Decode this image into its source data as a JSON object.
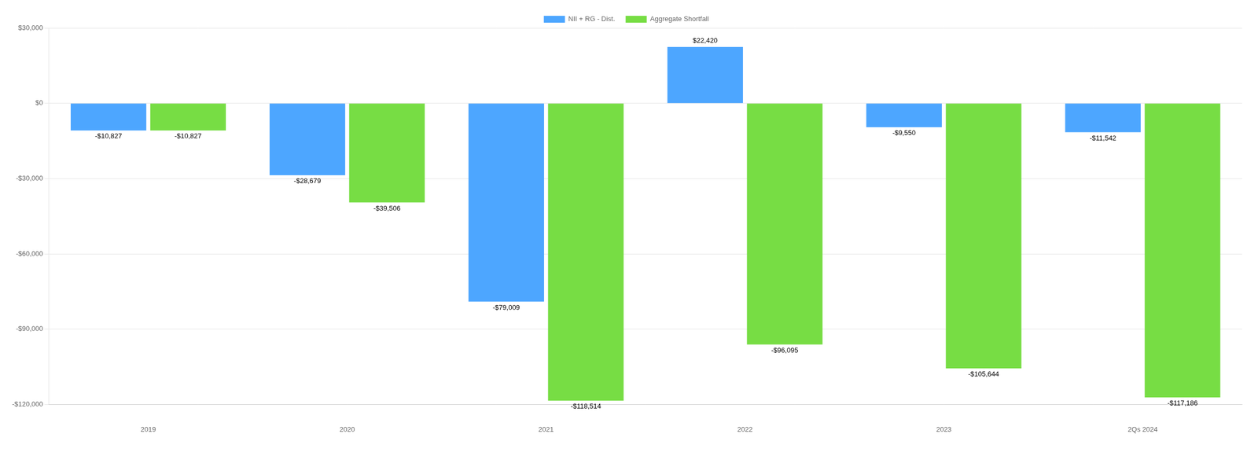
{
  "chart_data": {
    "type": "bar",
    "categories": [
      "2019",
      "2020",
      "2021",
      "2022",
      "2023",
      "2Qs 2024"
    ],
    "series": [
      {
        "name": "NII + RG - Dist.",
        "color": "#4da6ff",
        "values": [
          -10827,
          -28679,
          -79009,
          22420,
          -9550,
          -11542
        ],
        "value_labels": [
          "-$10,827",
          "-$28,679",
          "-$79,009",
          "$22,420",
          "-$9,550",
          "-$11,542"
        ]
      },
      {
        "name": "Aggregate Shortfall",
        "color": "#77dd44",
        "values": [
          -10827,
          -39506,
          -118514,
          -96095,
          -105644,
          -117186
        ],
        "value_labels": [
          "-$10,827",
          "-$39,506",
          "-$118,514",
          "-$96,095",
          "-$105,644",
          "-$117,186"
        ]
      }
    ],
    "ylim": [
      -120000,
      30000
    ],
    "yticks": [
      {
        "value": -120000,
        "label": "-$120,000"
      },
      {
        "value": -90000,
        "label": "-$90,000"
      },
      {
        "value": -60000,
        "label": "-$60,000"
      },
      {
        "value": -30000,
        "label": "-$30,000"
      },
      {
        "value": 0,
        "label": "$0"
      },
      {
        "value": 30000,
        "label": "$30,000"
      }
    ],
    "grid": true,
    "legend": "top",
    "data_labels": true
  }
}
